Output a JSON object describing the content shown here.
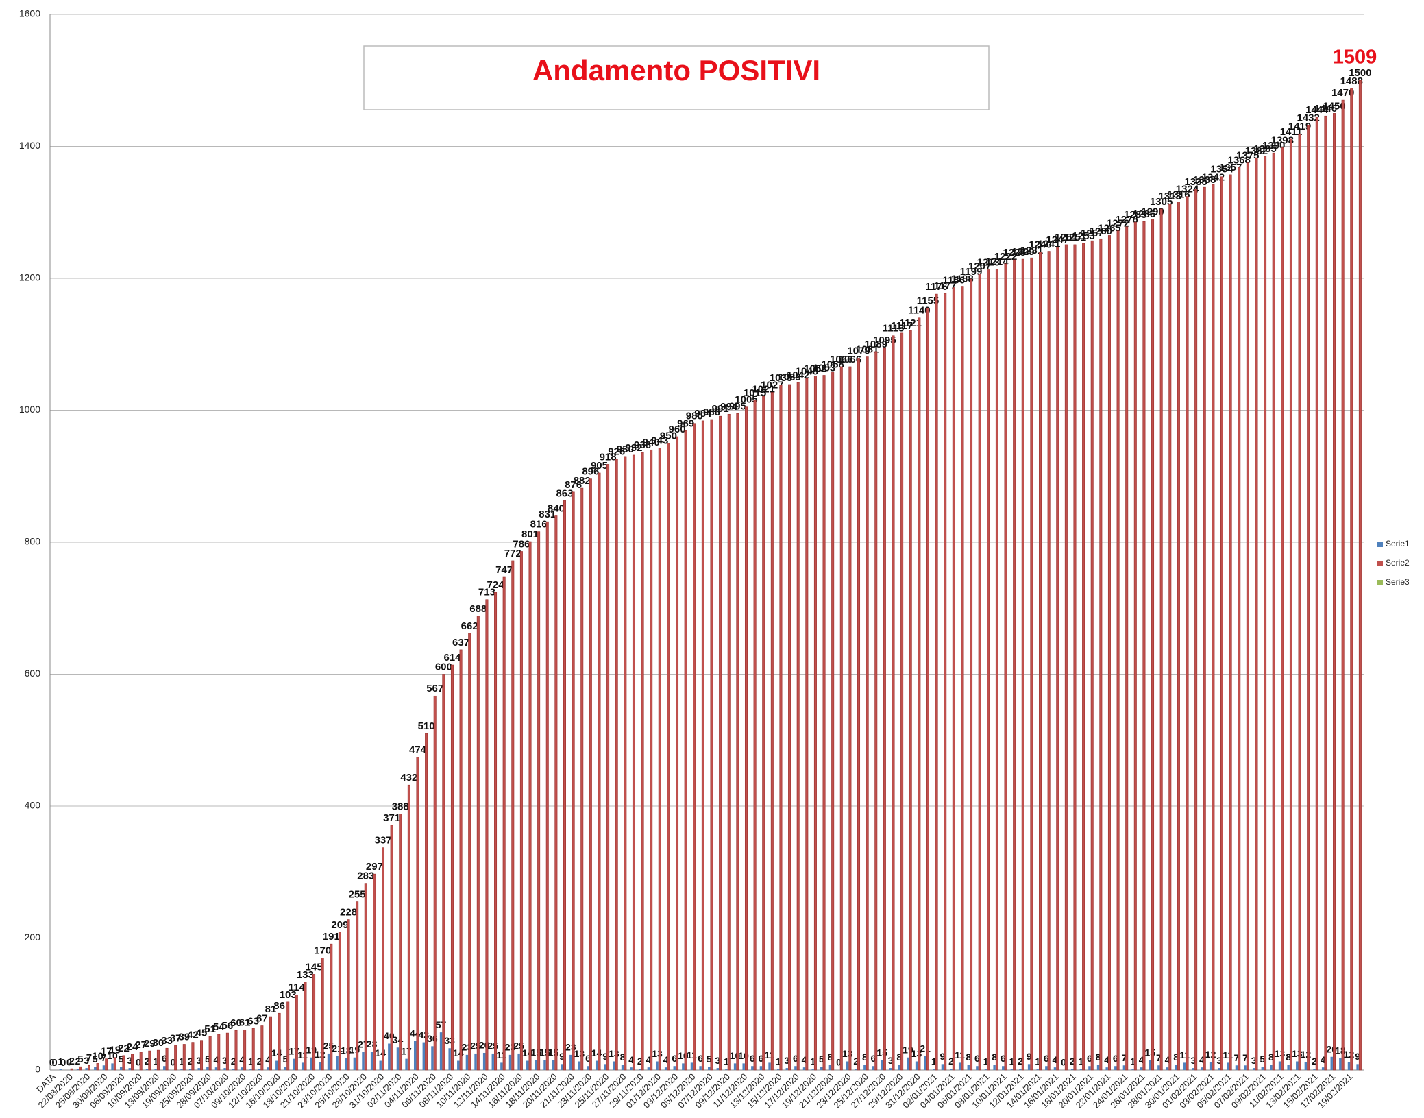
{
  "chart_data": {
    "type": "bar",
    "title": "Andamento POSITIVI",
    "annotation": "1509",
    "legend": "right",
    "grid": true,
    "ylim": [
      0,
      1600
    ],
    "yticks": [
      0,
      200,
      400,
      600,
      800,
      1000,
      1200,
      1400,
      1600
    ],
    "categories": [
      "DATA",
      null,
      "22/08/2020",
      null,
      "25/08/2020",
      null,
      "30/08/2020",
      null,
      "06/09/2020",
      null,
      "10/09/2020",
      null,
      "13/09/2020",
      null,
      "19/09/2020",
      null,
      "25/09/2020",
      null,
      "28/09/2020",
      null,
      "07/10/2020",
      null,
      "09/10/2020",
      null,
      "12/10/2020",
      null,
      "16/10/2020",
      null,
      "18/10/2020",
      null,
      "21/10/2020",
      null,
      "23/10/2020",
      null,
      "25/10/2020",
      null,
      "28/10/2020",
      null,
      "31/10/2020",
      null,
      "02/11/2020",
      null,
      "04/11/2020",
      null,
      "06/11/2020",
      null,
      "08/11/2020",
      null,
      "10/11/2020",
      null,
      "12/11/2020",
      null,
      "14/11/2020",
      null,
      "16/11/2020",
      null,
      "18/11/2020",
      null,
      "20/11/2020",
      null,
      "21/11/2020",
      null,
      "23/11/2020",
      null,
      "25/11/2020",
      null,
      "27/11/2020",
      null,
      "29/11/2020",
      null,
      "01/12/2020",
      null,
      "03/12/2020",
      null,
      "05/12/2020",
      null,
      "07/12/2020",
      null,
      "09/12/2020",
      null,
      "11/12/2020",
      null,
      "13/12/2020",
      null,
      "15/12/2020",
      null,
      "17/12/2020",
      null,
      "19/12/2020",
      null,
      "21/12/2020",
      null,
      "23/12/2020",
      null,
      "25/12/2020",
      null,
      "27/12/2020",
      null,
      "29/12/2020",
      null,
      "31/12/2020",
      null,
      "02/01/2021",
      null,
      "04/01/2021",
      null,
      "06/01/2021",
      null,
      "08/01/2021",
      null,
      "10/01/2021",
      null,
      "12/01/2021",
      null,
      "14/01/2021",
      null,
      "16/01/2021",
      null,
      "18/01/2021",
      null,
      "20/01/2021",
      null,
      "22/01/2021",
      null,
      "24/01/2021",
      null,
      "26/01/2021",
      null,
      "28/01/2021",
      null,
      "30/01/2021",
      null,
      "01/02/2021",
      null,
      "03/02/2021",
      null,
      "05/02/2021",
      null,
      "07/02/2021",
      null,
      "09/02/2021",
      null,
      "11/02/2021",
      null,
      "13/02/2021",
      null,
      "15/02/2021",
      null,
      "17/02/2021",
      null,
      "19/02/2021",
      null
    ],
    "series": [
      {
        "name": "Serie1",
        "color": "#4f81bd",
        "values": [
          0,
          1,
          0,
          2,
          3,
          5,
          7,
          10,
          5,
          3,
          0,
          2,
          1,
          6,
          0,
          1,
          2,
          3,
          5,
          4,
          3,
          2,
          4,
          1,
          2,
          4,
          14,
          5,
          17,
          11,
          19,
          12,
          25,
          21,
          18,
          19,
          27,
          28,
          14,
          40,
          34,
          17,
          44,
          42,
          36,
          57,
          33,
          14,
          23,
          25,
          26,
          25,
          11,
          23,
          25,
          14,
          15,
          15,
          15,
          9,
          23,
          13,
          6,
          14,
          9,
          13,
          8,
          4,
          2,
          4,
          13,
          4,
          6,
          10,
          11,
          6,
          5,
          3,
          1,
          10,
          10,
          6,
          6,
          11,
          1,
          3,
          6,
          4,
          1,
          5,
          8,
          0,
          13,
          2,
          8,
          6,
          15,
          3,
          8,
          19,
          13,
          21,
          1,
          9,
          2,
          11,
          8,
          6,
          1,
          8,
          6,
          1,
          2,
          9,
          1,
          6,
          4,
          0,
          2,
          1,
          6,
          8,
          4,
          6,
          7,
          1,
          4,
          15,
          7,
          4,
          8,
          11,
          3,
          4,
          12,
          3,
          11,
          7,
          7,
          3,
          5,
          8,
          13,
          8,
          13,
          12,
          2,
          4,
          20,
          18,
          12,
          9
        ]
      },
      {
        "name": "Serie2",
        "color": "#c0504d",
        "values": [
          0,
          0,
          2,
          5,
          7,
          10,
          17,
          19,
          22,
          24,
          27,
          29,
          30,
          33,
          37,
          39,
          42,
          45,
          51,
          54,
          56,
          60,
          61,
          63,
          67,
          81,
          86,
          103,
          114,
          133,
          145,
          170,
          191,
          209,
          228,
          255,
          283,
          297,
          337,
          371,
          388,
          432,
          474,
          510,
          567,
          600,
          614,
          637,
          662,
          688,
          713,
          724,
          747,
          772,
          786,
          801,
          816,
          831,
          840,
          863,
          876,
          882,
          896,
          905,
          918,
          926,
          930,
          932,
          936,
          940,
          943,
          950,
          960,
          969,
          980,
          984,
          986,
          991,
          994,
          995,
          1005,
          1015,
          1021,
          1027,
          1038,
          1039,
          1042,
          1048,
          1052,
          1053,
          1058,
          1066,
          1066,
          1079,
          1081,
          1089,
          1095,
          1113,
          1117,
          1121,
          1140,
          1155,
          1176,
          1177,
          1186,
          1188,
          1199,
          1207,
          1213,
          1214,
          1222,
          1228,
          1229,
          1231,
          1240,
          1241,
          1247,
          1251,
          1251,
          1253,
          1257,
          1260,
          1265,
          1272,
          1278,
          1285,
          1286,
          1290,
          1305,
          1313,
          1316,
          1324,
          1335,
          1338,
          1342,
          1354,
          1357,
          1368,
          1375,
          1382,
          1385,
          1390,
          1398,
          1411,
          1419,
          1432,
          1444,
          1446,
          1450,
          1470,
          1488,
          1500
        ]
      },
      {
        "name": "Serie3",
        "color": "#9bbb59",
        "values": [
          null,
          null,
          null,
          null,
          null,
          null,
          null,
          null,
          null,
          null,
          null,
          null,
          null,
          null,
          null,
          null,
          null,
          null,
          null,
          null,
          null,
          null,
          null,
          null,
          null,
          null,
          null,
          null,
          null,
          null,
          null,
          null,
          null,
          null,
          null,
          null,
          null,
          null,
          null,
          null,
          null,
          null,
          null,
          null,
          null,
          null,
          null,
          null,
          null,
          null,
          null,
          null,
          null,
          null,
          null,
          null,
          null,
          null,
          null,
          null,
          null,
          null,
          null,
          null,
          null,
          null,
          null,
          null,
          null,
          null,
          null,
          null,
          null,
          null,
          null,
          null,
          null,
          null,
          null,
          null,
          null,
          null,
          null,
          null,
          null,
          null,
          null,
          null,
          null,
          null,
          null,
          null,
          null,
          null,
          null,
          null,
          null,
          null,
          null,
          null,
          null,
          null,
          null,
          null,
          null,
          null,
          null,
          null,
          null,
          null,
          null,
          null,
          null,
          null,
          null,
          null,
          null,
          null,
          null,
          null,
          null,
          null,
          null,
          null,
          null,
          null,
          null,
          null,
          null,
          null,
          null,
          null,
          null,
          null,
          null,
          null,
          null,
          null,
          null,
          null,
          null,
          null,
          null,
          null,
          null,
          null,
          null,
          null,
          null,
          null,
          null,
          null
        ]
      }
    ]
  }
}
